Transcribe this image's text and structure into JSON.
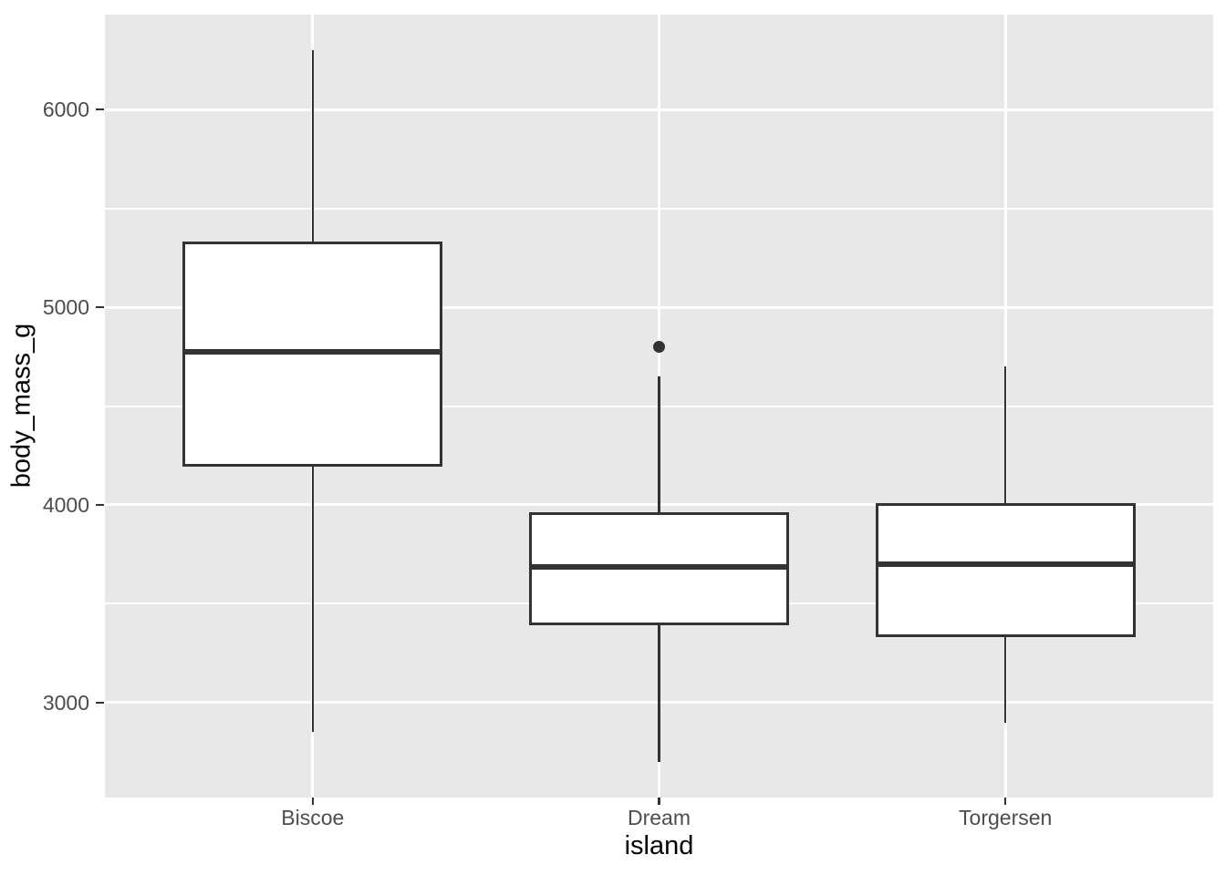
{
  "chart_data": {
    "type": "boxplot",
    "title": "",
    "xlabel": "island",
    "ylabel": "body_mass_g",
    "categories": [
      "Biscoe",
      "Dream",
      "Torgersen"
    ],
    "series": [
      {
        "category": "Biscoe",
        "whisker_low": 2850,
        "q1": 4200,
        "median": 4775,
        "q3": 5325,
        "whisker_high": 6300,
        "outliers": []
      },
      {
        "category": "Dream",
        "whisker_low": 2700,
        "q1": 3400,
        "median": 3687.5,
        "q3": 3956.25,
        "whisker_high": 4650,
        "outliers": [
          4800
        ]
      },
      {
        "category": "Torgersen",
        "whisker_low": 2900,
        "q1": 3337.5,
        "median": 3700,
        "q3": 4000,
        "whisker_high": 4700,
        "outliers": []
      }
    ],
    "y_axis": {
      "major_ticks": [
        3000,
        4000,
        5000,
        6000
      ],
      "minor_gridlines": [
        3500,
        4500,
        5500
      ],
      "range": [
        2520,
        6480
      ]
    },
    "x_axis": {
      "tick_labels": [
        "Biscoe",
        "Dream",
        "Torgersen"
      ]
    },
    "grid": "major and minor horizontal white gridlines, white vertical gridline per category, on grey panel",
    "legend": "none",
    "style": {
      "figure_background": "#FFFFFF",
      "panel_background": "#E8E8E8",
      "grid_color": "#FFFFFF",
      "box_fill": "#FFFFFF",
      "stroke_color": "#333333",
      "tick_label_color": "#4D4D4D",
      "axis_title_color": "#000000"
    }
  }
}
